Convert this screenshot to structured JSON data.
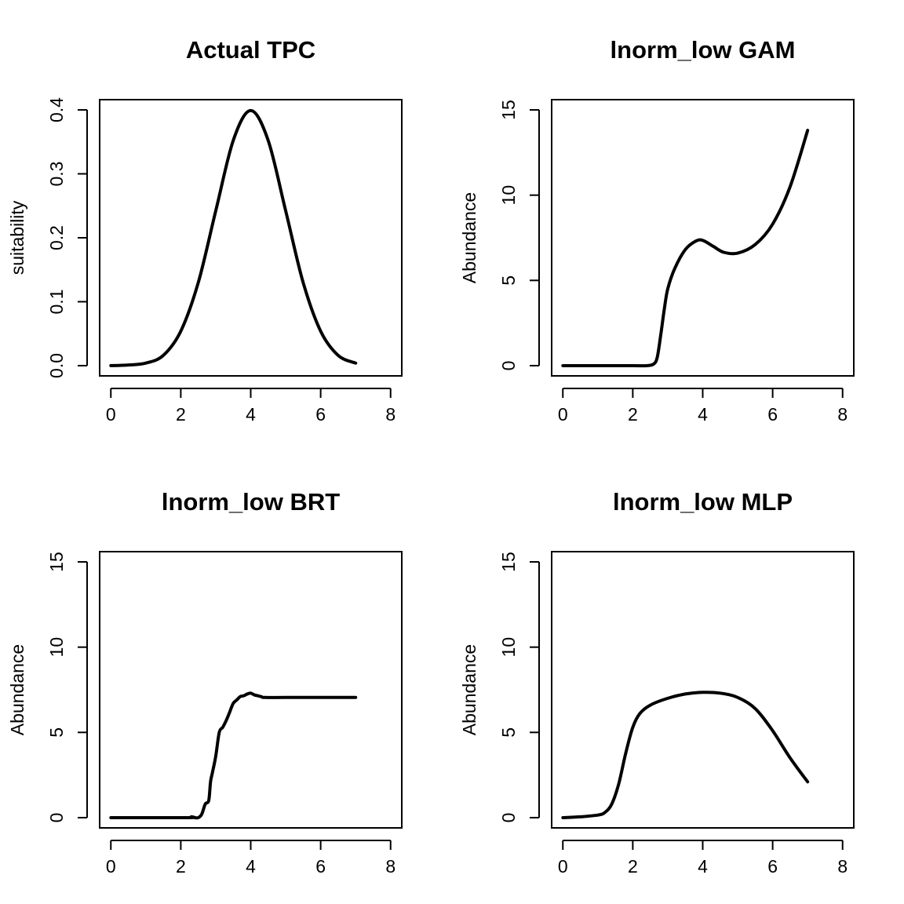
{
  "chart_data": [
    {
      "type": "line",
      "title": "Actual TPC",
      "xlabel": "",
      "ylabel": "suitability",
      "xlim": [
        0,
        8
      ],
      "ylim": [
        0,
        0.4
      ],
      "xticks": [
        0,
        2,
        4,
        6,
        8
      ],
      "yticks": [
        0.0,
        0.1,
        0.2,
        0.3,
        0.4
      ],
      "ytick_labels": [
        "0.0",
        "0.1",
        "0.2",
        "0.3",
        "0.4"
      ],
      "grid": false,
      "series": [
        {
          "x": [
            0,
            0.5,
            1,
            1.5,
            2,
            2.5,
            3,
            3.5,
            4,
            4.5,
            5,
            5.5,
            6,
            6.5,
            7
          ],
          "y": [
            0.0001,
            0.001,
            0.004,
            0.016,
            0.054,
            0.13,
            0.242,
            0.352,
            0.399,
            0.352,
            0.242,
            0.13,
            0.054,
            0.016,
            0.004
          ]
        }
      ]
    },
    {
      "type": "line",
      "title": "lnorm_low GAM",
      "xlabel": "",
      "ylabel": "Abundance",
      "xlim": [
        0,
        8
      ],
      "ylim": [
        0,
        15
      ],
      "xticks": [
        0,
        2,
        4,
        6,
        8
      ],
      "yticks": [
        0,
        5,
        10,
        15
      ],
      "ytick_labels": [
        "0",
        "5",
        "10",
        "15"
      ],
      "grid": false,
      "series": [
        {
          "x": [
            0,
            1,
            2,
            2.4,
            2.6,
            2.7,
            2.8,
            2.9,
            3.0,
            3.2,
            3.5,
            3.8,
            4.0,
            4.3,
            4.6,
            5.0,
            5.5,
            6.0,
            6.5,
            7.0
          ],
          "y": [
            0,
            0,
            0,
            0,
            0.1,
            0.5,
            1.8,
            3.3,
            4.5,
            5.7,
            6.8,
            7.3,
            7.35,
            7.0,
            6.65,
            6.6,
            7.1,
            8.3,
            10.5,
            13.8
          ]
        }
      ]
    },
    {
      "type": "line",
      "title": "lnorm_low BRT",
      "xlabel": "",
      "ylabel": "Abundance",
      "xlim": [
        0,
        8
      ],
      "ylim": [
        0,
        15
      ],
      "xticks": [
        0,
        2,
        4,
        6,
        8
      ],
      "yticks": [
        0,
        5,
        10,
        15
      ],
      "ytick_labels": [
        "0",
        "5",
        "10",
        "15"
      ],
      "grid": false,
      "series": [
        {
          "x": [
            0,
            2.2,
            2.3,
            2.4,
            2.5,
            2.6,
            2.7,
            2.8,
            2.85,
            2.9,
            3.0,
            3.1,
            3.2,
            3.3,
            3.4,
            3.5,
            3.6,
            3.7,
            3.8,
            3.9,
            4.0,
            4.1,
            4.2,
            4.3,
            4.4,
            5.0,
            6.0,
            7.0
          ],
          "y": [
            0,
            0,
            0.05,
            0.0,
            0.0,
            0.2,
            0.8,
            1.0,
            2.1,
            2.6,
            3.6,
            5.0,
            5.3,
            5.7,
            6.2,
            6.7,
            6.9,
            7.1,
            7.15,
            7.25,
            7.3,
            7.2,
            7.15,
            7.1,
            7.05,
            7.05,
            7.05,
            7.05
          ]
        }
      ]
    },
    {
      "type": "line",
      "title": "lnorm_low MLP",
      "xlabel": "",
      "ylabel": "Abundance",
      "xlim": [
        0,
        8
      ],
      "ylim": [
        0,
        15
      ],
      "xticks": [
        0,
        2,
        4,
        6,
        8
      ],
      "yticks": [
        0,
        5,
        10,
        15
      ],
      "ytick_labels": [
        "0",
        "5",
        "10",
        "15"
      ],
      "grid": false,
      "series": [
        {
          "x": [
            0,
            0.5,
            1.0,
            1.2,
            1.4,
            1.6,
            1.8,
            2.0,
            2.2,
            2.5,
            3.0,
            3.5,
            4.0,
            4.5,
            5.0,
            5.5,
            6.0,
            6.5,
            7.0
          ],
          "y": [
            0,
            0.05,
            0.15,
            0.3,
            0.8,
            2.0,
            3.8,
            5.3,
            6.1,
            6.6,
            7.0,
            7.25,
            7.35,
            7.3,
            7.05,
            6.4,
            5.1,
            3.5,
            2.1
          ]
        }
      ]
    }
  ]
}
